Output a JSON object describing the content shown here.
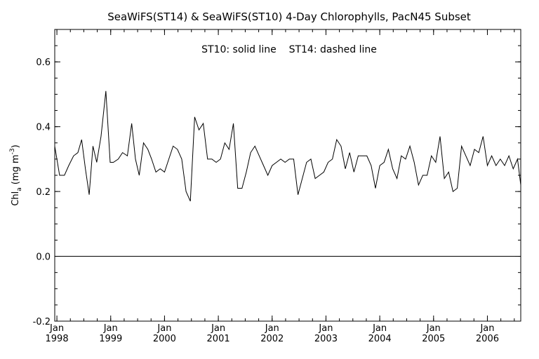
{
  "chart_data": {
    "type": "line",
    "title": "SeaWiFS(ST14) & SeaWiFS(ST10) 4-Day Chlorophylls, PacN45 Subset",
    "annotation": "ST10: solid line    ST14: dashed line",
    "ylabel_main": "Chl",
    "ylabel_sub": "a",
    "ylabel_units": "(mg m",
    "ylabel_exp": "-3",
    "ylabel_close": ")",
    "ylim": [
      -0.2,
      0.7
    ],
    "yticks": [
      -0.2,
      0.0,
      0.2,
      0.4,
      0.6
    ],
    "ytick_labels": [
      "-0.2",
      "0.0",
      "0.2",
      "0.4",
      "0.6"
    ],
    "xlim": [
      1997.96,
      1998.0
    ],
    "xlim_end": 2006.62,
    "xticks": [
      1998.0,
      1999.0,
      2000.0,
      2001.0,
      2002.0,
      2003.0,
      2004.0,
      2005.0,
      2006.0
    ],
    "xtick_month": "Jan",
    "xtick_years": [
      "1998",
      "1999",
      "2000",
      "2001",
      "2002",
      "2003",
      "2004",
      "2005",
      "2006"
    ],
    "zero_line": 0.0,
    "grid": false,
    "series": [
      {
        "style": "solid",
        "x": [
          1997.96,
          1998.05,
          1998.14,
          1998.22,
          1998.31,
          1998.39,
          1998.46,
          1998.53,
          1998.6,
          1998.67,
          1998.74,
          1998.82,
          1998.91,
          1998.99,
          1999.05,
          1999.14,
          1999.22,
          1999.31,
          1999.39,
          1999.46,
          1999.53,
          1999.61,
          1999.69,
          1999.76,
          1999.84,
          1999.92,
          2000.0,
          2000.08,
          2000.16,
          2000.24,
          2000.32,
          2000.4,
          2000.48,
          2000.56,
          2000.64,
          2000.72,
          2000.8,
          2000.88,
          2000.96,
          2001.04,
          2001.12,
          2001.2,
          2001.28,
          2001.36,
          2001.44,
          2001.52,
          2001.6,
          2001.68,
          2001.76,
          2001.84,
          2001.92,
          2002.0,
          2002.08,
          2002.16,
          2002.24,
          2002.32,
          2002.4,
          2002.48,
          2002.56,
          2002.64,
          2002.72,
          2002.8,
          2002.88,
          2002.96,
          2003.04,
          2003.12,
          2003.2,
          2003.28,
          2003.36,
          2003.44,
          2003.52,
          2003.6,
          2003.68,
          2003.76,
          2003.84,
          2003.92,
          2004.0,
          2004.08,
          2004.16,
          2004.24,
          2004.32,
          2004.4,
          2004.48,
          2004.56,
          2004.64,
          2004.72,
          2004.8,
          2004.88,
          2004.96,
          2005.04,
          2005.12,
          2005.2,
          2005.28,
          2005.36,
          2005.44,
          2005.52,
          2005.6,
          2005.68,
          2005.76,
          2005.84,
          2005.92,
          2006.0,
          2006.08,
          2006.16,
          2006.24,
          2006.32,
          2006.4,
          2006.48,
          2006.56,
          2006.62
        ],
        "y": [
          0.34,
          0.25,
          0.25,
          0.28,
          0.31,
          0.32,
          0.36,
          0.27,
          0.19,
          0.34,
          0.29,
          0.37,
          0.51,
          0.29,
          0.29,
          0.3,
          0.32,
          0.31,
          0.41,
          0.3,
          0.25,
          0.35,
          0.33,
          0.3,
          0.26,
          0.27,
          0.26,
          0.3,
          0.34,
          0.33,
          0.3,
          0.2,
          0.17,
          0.43,
          0.39,
          0.41,
          0.3,
          0.3,
          0.29,
          0.3,
          0.35,
          0.33,
          0.41,
          0.21,
          0.21,
          0.26,
          0.32,
          0.34,
          0.31,
          0.28,
          0.25,
          0.28,
          0.29,
          0.3,
          0.29,
          0.3,
          0.3,
          0.19,
          0.24,
          0.29,
          0.3,
          0.24,
          0.25,
          0.26,
          0.29,
          0.3,
          0.36,
          0.34,
          0.27,
          0.32,
          0.26,
          0.31,
          0.31,
          0.31,
          0.28,
          0.21,
          0.28,
          0.29,
          0.33,
          0.27,
          0.24,
          0.31,
          0.3,
          0.34,
          0.29,
          0.22,
          0.25,
          0.25,
          0.31,
          0.29,
          0.37,
          0.24,
          0.26,
          0.2,
          0.21,
          0.34,
          0.31,
          0.28,
          0.33,
          0.32,
          0.37,
          0.28,
          0.31,
          0.28,
          0.3,
          0.28,
          0.31,
          0.27,
          0.3,
          0.22
        ]
      }
    ]
  }
}
